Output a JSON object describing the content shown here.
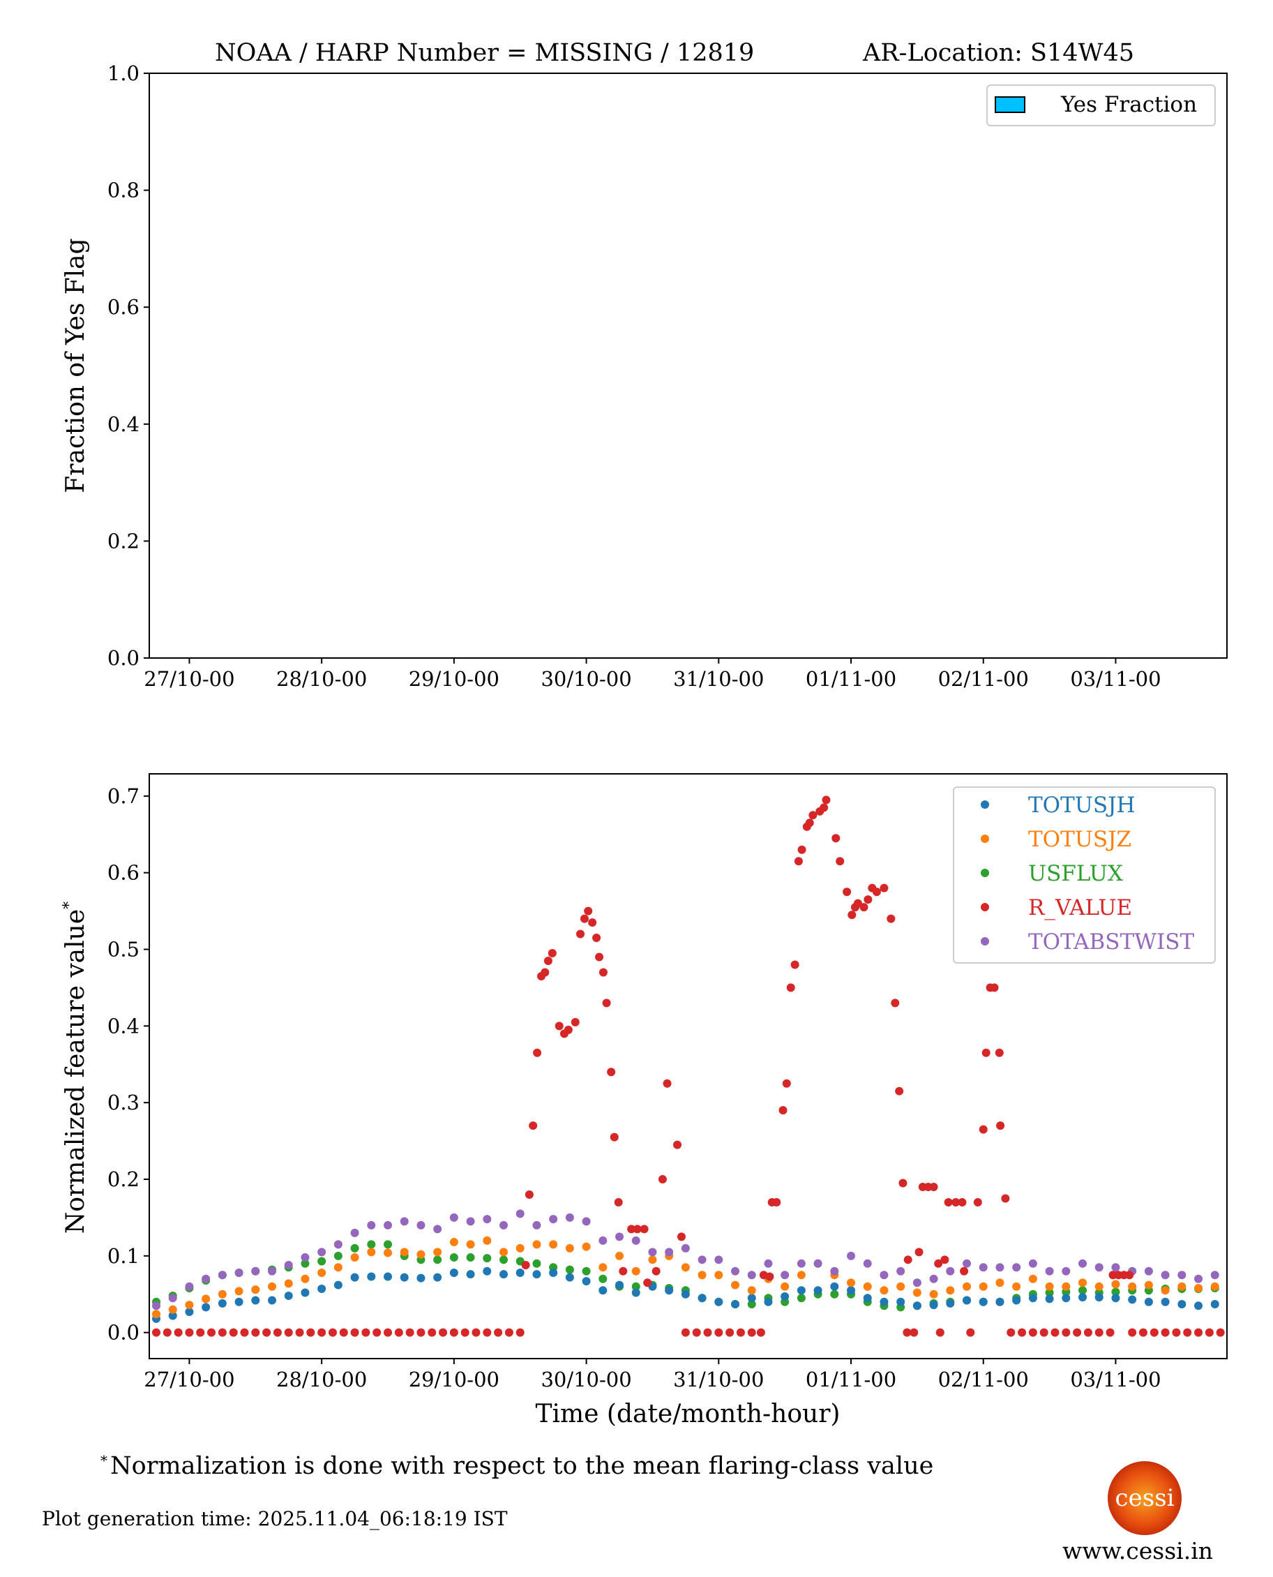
{
  "title": {
    "left": "NOAA / HARP Number = MISSING / 12819",
    "right": "AR-Location: S14W45"
  },
  "colors": {
    "TOTUSJH": "#1f77b4",
    "TOTUSJZ": "#ff7f0e",
    "USFLUX": "#2ca02c",
    "R_VALUE": "#d62728",
    "TOTABSTWIST": "#9467bd",
    "yes_fraction": "#00bfff",
    "logo": "#e8500f"
  },
  "footnote": {
    "mark": "*",
    "text": "Normalization is done with respect to the mean flaring-class value"
  },
  "generation_time": "Plot generation time: 2025.11.04_06:18:19 IST",
  "logo": {
    "text": "cessi",
    "url": "www.cessi.in"
  },
  "chart_data": [
    {
      "type": "bar",
      "ylabel": "Fraction of Yes Flag",
      "ylim": [
        0,
        1
      ],
      "yticks": [
        "0.0",
        "0.2",
        "0.4",
        "0.6",
        "0.8",
        "1.0"
      ],
      "xticks": [
        "27/10-00",
        "28/10-00",
        "29/10-00",
        "30/10-00",
        "31/10-00",
        "01/11-00",
        "02/11-00",
        "03/11-00"
      ],
      "xlim": [
        "26/10 16:44",
        "03/11 20:11"
      ],
      "legend": {
        "placement": "top-right",
        "entries": [
          "Yes Fraction"
        ]
      },
      "values": [],
      "grid": false
    },
    {
      "type": "scatter",
      "ylabel": "Normalized feature value",
      "ylabel_mark": "*",
      "xlabel": "Time (date/month-hour)",
      "ylim": [
        -0.034,
        0.729
      ],
      "yticks": [
        "0.0",
        "0.1",
        "0.2",
        "0.3",
        "0.4",
        "0.5",
        "0.6",
        "0.7"
      ],
      "xticks": [
        "27/10-00",
        "28/10-00",
        "29/10-00",
        "30/10-00",
        "31/10-00",
        "01/11-00",
        "02/11-00",
        "03/11-00"
      ],
      "xlim": [
        "26/10 16:44",
        "03/11 20:11"
      ],
      "grid": false,
      "legend": {
        "placement": "top-right",
        "entries": [
          "TOTUSJH",
          "TOTUSJZ",
          "USFLUX",
          "R_VALUE",
          "TOTABSTWIST"
        ]
      },
      "x": [
        "26/10 18:00",
        "26/10 21:00",
        "27/10 00:00",
        "27/10 03:00",
        "27/10 06:00",
        "27/10 09:00",
        "27/10 12:00",
        "27/10 15:00",
        "27/10 18:00",
        "27/10 21:00",
        "28/10 00:00",
        "28/10 03:00",
        "28/10 06:00",
        "28/10 09:00",
        "28/10 12:00",
        "28/10 15:00",
        "28/10 18:00",
        "28/10 21:00",
        "29/10 00:00",
        "29/10 03:00",
        "29/10 06:00",
        "29/10 09:00",
        "29/10 12:00",
        "29/10 15:00",
        "29/10 18:00",
        "29/10 21:00",
        "30/10 00:00",
        "30/10 03:00",
        "30/10 06:00",
        "30/10 09:00",
        "30/10 12:00",
        "30/10 15:00",
        "30/10 18:00",
        "30/10 21:00",
        "31/10 00:00",
        "31/10 03:00",
        "31/10 06:00",
        "31/10 09:00",
        "31/10 12:00",
        "31/10 15:00",
        "31/10 18:00",
        "31/10 21:00",
        "01/11 00:00",
        "01/11 03:00",
        "01/11 06:00",
        "01/11 09:00",
        "01/11 12:00",
        "01/11 15:00",
        "01/11 18:00",
        "01/11 21:00",
        "02/11 00:00",
        "02/11 03:00",
        "02/11 06:00",
        "02/11 09:00",
        "02/11 12:00",
        "02/11 15:00",
        "02/11 18:00",
        "02/11 21:00",
        "03/11 00:00",
        "03/11 03:00",
        "03/11 06:00",
        "03/11 09:00",
        "03/11 12:00",
        "03/11 15:00",
        "03/11 18:00"
      ],
      "series": [
        {
          "name": "TOTUSJH",
          "values": [
            0.018,
            0.022,
            0.027,
            0.033,
            0.038,
            0.04,
            0.042,
            0.042,
            0.048,
            0.052,
            0.057,
            0.062,
            0.072,
            0.073,
            0.073,
            0.072,
            0.071,
            0.072,
            0.078,
            0.076,
            0.08,
            0.076,
            0.078,
            0.076,
            0.078,
            0.072,
            0.067,
            0.055,
            0.062,
            0.052,
            0.06,
            0.055,
            0.05,
            0.045,
            0.04,
            0.037,
            0.045,
            0.04,
            0.047,
            0.055,
            0.055,
            0.06,
            0.055,
            0.045,
            0.04,
            0.04,
            0.035,
            0.036,
            0.038,
            0.042,
            0.04,
            0.04,
            0.042,
            0.045,
            0.044,
            0.045,
            0.046,
            0.046,
            0.045,
            0.043,
            0.04,
            0.04,
            0.037,
            0.035,
            0.037
          ]
        },
        {
          "name": "TOTUSJZ",
          "values": [
            0.024,
            0.03,
            0.036,
            0.044,
            0.05,
            0.054,
            0.056,
            0.06,
            0.064,
            0.07,
            0.078,
            0.085,
            0.098,
            0.105,
            0.104,
            0.105,
            0.102,
            0.105,
            0.118,
            0.115,
            0.12,
            0.105,
            0.11,
            0.115,
            0.115,
            0.11,
            0.112,
            0.085,
            0.1,
            0.08,
            0.095,
            0.1,
            0.085,
            0.075,
            0.075,
            0.062,
            0.055,
            0.07,
            0.06,
            0.075,
            0.09,
            0.075,
            0.065,
            0.06,
            0.055,
            0.06,
            0.052,
            0.05,
            0.055,
            0.06,
            0.06,
            0.065,
            0.06,
            0.07,
            0.06,
            0.06,
            0.065,
            0.06,
            0.063,
            0.06,
            0.062,
            0.055,
            0.06,
            0.058,
            0.06
          ]
        },
        {
          "name": "USFLUX",
          "values": [
            0.04,
            0.048,
            0.058,
            0.068,
            0.075,
            0.078,
            0.08,
            0.082,
            0.085,
            0.09,
            0.093,
            0.1,
            0.11,
            0.115,
            0.115,
            0.1,
            0.095,
            0.095,
            0.098,
            0.098,
            0.097,
            0.095,
            0.093,
            0.09,
            0.085,
            0.082,
            0.08,
            0.07,
            0.06,
            0.06,
            0.062,
            0.058,
            0.055,
            0.045,
            0.04,
            0.037,
            0.037,
            0.045,
            0.04,
            0.045,
            0.05,
            0.05,
            0.05,
            0.04,
            0.035,
            0.033,
            0.035,
            0.038,
            0.04,
            0.042,
            0.04,
            0.04,
            0.045,
            0.05,
            0.052,
            0.053,
            0.055,
            0.052,
            0.053,
            0.055,
            0.055,
            0.057,
            0.057,
            0.057,
            0.058
          ]
        },
        {
          "name": "TOTABSTWIST",
          "values": [
            0.035,
            0.045,
            0.06,
            0.07,
            0.075,
            0.078,
            0.08,
            0.08,
            0.088,
            0.098,
            0.105,
            0.115,
            0.13,
            0.14,
            0.14,
            0.145,
            0.14,
            0.135,
            0.15,
            0.145,
            0.148,
            0.14,
            0.155,
            0.14,
            0.148,
            0.15,
            0.145,
            0.12,
            0.125,
            0.12,
            0.105,
            0.105,
            0.11,
            0.095,
            0.095,
            0.08,
            0.075,
            0.09,
            0.075,
            0.09,
            0.09,
            0.08,
            0.1,
            0.09,
            0.075,
            0.08,
            0.065,
            0.07,
            0.08,
            0.09,
            0.085,
            0.085,
            0.085,
            0.09,
            0.08,
            0.08,
            0.09,
            0.085,
            0.085,
            0.08,
            0.08,
            0.075,
            0.075,
            0.07,
            0.075
          ]
        }
      ],
      "r_value_points": [
        [
          "26/10 18:00",
          0
        ],
        [
          "26/10 20:00",
          0
        ],
        [
          "26/10 22:00",
          0
        ],
        [
          "27/10 00:00",
          0
        ],
        [
          "27/10 02:00",
          0
        ],
        [
          "27/10 04:00",
          0
        ],
        [
          "27/10 06:00",
          0
        ],
        [
          "27/10 08:00",
          0
        ],
        [
          "27/10 10:00",
          0
        ],
        [
          "27/10 12:00",
          0
        ],
        [
          "27/10 14:00",
          0
        ],
        [
          "27/10 16:00",
          0
        ],
        [
          "27/10 18:00",
          0
        ],
        [
          "27/10 20:00",
          0
        ],
        [
          "27/10 22:00",
          0
        ],
        [
          "28/10 00:00",
          0
        ],
        [
          "28/10 02:00",
          0
        ],
        [
          "28/10 04:00",
          0
        ],
        [
          "28/10 06:00",
          0
        ],
        [
          "28/10 08:00",
          0
        ],
        [
          "28/10 10:00",
          0
        ],
        [
          "28/10 12:00",
          0
        ],
        [
          "28/10 14:00",
          0
        ],
        [
          "28/10 16:00",
          0
        ],
        [
          "28/10 18:00",
          0
        ],
        [
          "28/10 20:00",
          0
        ],
        [
          "28/10 22:00",
          0
        ],
        [
          "29/10 00:00",
          0
        ],
        [
          "29/10 02:00",
          0
        ],
        [
          "29/10 04:00",
          0
        ],
        [
          "29/10 06:00",
          0
        ],
        [
          "29/10 08:00",
          0
        ],
        [
          "29/10 10:00",
          0
        ],
        [
          "29/10 12:00",
          0
        ],
        [
          "29/10 13:00",
          0.088
        ],
        [
          "29/10 13:40",
          0.18
        ],
        [
          "29/10 14:20",
          0.27
        ],
        [
          "29/10 15:05",
          0.365
        ],
        [
          "29/10 15:50",
          0.465
        ],
        [
          "29/10 16:30",
          0.47
        ],
        [
          "29/10 17:05",
          0.485
        ],
        [
          "29/10 17:50",
          0.495
        ],
        [
          "29/10 19:05",
          0.4
        ],
        [
          "29/10 20:00",
          0.39
        ],
        [
          "29/10 20:45",
          0.395
        ],
        [
          "29/10 22:00",
          0.405
        ],
        [
          "29/10 22:55",
          0.52
        ],
        [
          "29/10 23:40",
          0.54
        ],
        [
          "30/10 00:20",
          0.55
        ],
        [
          "30/10 01:05",
          0.535
        ],
        [
          "30/10 01:50",
          0.515
        ],
        [
          "30/10 02:20",
          0.49
        ],
        [
          "30/10 03:05",
          0.47
        ],
        [
          "30/10 03:40",
          0.43
        ],
        [
          "30/10 04:30",
          0.34
        ],
        [
          "30/10 05:05",
          0.255
        ],
        [
          "30/10 05:50",
          0.17
        ],
        [
          "30/10 06:40",
          0.08
        ],
        [
          "30/10 08:10",
          0.135
        ],
        [
          "30/10 09:15",
          0.135
        ],
        [
          "30/10 10:30",
          0.135
        ],
        [
          "30/10 11:05",
          0.065
        ],
        [
          "30/10 12:40",
          0.08
        ],
        [
          "30/10 13:50",
          0.2
        ],
        [
          "30/10 14:40",
          0.325
        ],
        [
          "30/10 16:30",
          0.245
        ],
        [
          "30/10 17:15",
          0.125
        ],
        [
          "30/10 18:00",
          0
        ],
        [
          "30/10 20:00",
          0
        ],
        [
          "30/10 22:00",
          0
        ],
        [
          "31/10 00:00",
          0
        ],
        [
          "31/10 02:00",
          0
        ],
        [
          "31/10 04:00",
          0
        ],
        [
          "31/10 06:00",
          0
        ],
        [
          "31/10 07:40",
          0
        ],
        [
          "31/10 08:10",
          0.075
        ],
        [
          "31/10 09:15",
          0.073
        ],
        [
          "31/10 09:40",
          0.17
        ],
        [
          "31/10 10:30",
          0.17
        ],
        [
          "31/10 11:40",
          0.29
        ],
        [
          "31/10 12:20",
          0.325
        ],
        [
          "31/10 13:05",
          0.45
        ],
        [
          "31/10 13:50",
          0.48
        ],
        [
          "31/10 14:30",
          0.615
        ],
        [
          "31/10 15:05",
          0.63
        ],
        [
          "31/10 16:00",
          0.66
        ],
        [
          "31/10 16:30",
          0.665
        ],
        [
          "31/10 17:05",
          0.675
        ],
        [
          "31/10 18:20",
          0.68
        ],
        [
          "31/10 19:05",
          0.685
        ],
        [
          "31/10 19:30",
          0.695
        ],
        [
          "31/10 21:15",
          0.645
        ],
        [
          "31/10 22:00",
          0.615
        ],
        [
          "31/10 23:15",
          0.575
        ],
        [
          "01/11 00:10",
          0.545
        ],
        [
          "01/11 00:45",
          0.555
        ],
        [
          "01/11 01:15",
          0.56
        ],
        [
          "01/11 02:20",
          0.555
        ],
        [
          "01/11 03:05",
          0.565
        ],
        [
          "01/11 03:50",
          0.58
        ],
        [
          "01/11 04:40",
          0.575
        ],
        [
          "01/11 06:00",
          0.58
        ],
        [
          "01/11 07:15",
          0.54
        ],
        [
          "01/11 08:00",
          0.43
        ],
        [
          "01/11 08:45",
          0.315
        ],
        [
          "01/11 09:25",
          0.195
        ],
        [
          "01/11 10:10",
          0
        ],
        [
          "01/11 10:20",
          0.095
        ],
        [
          "01/11 11:25",
          0
        ],
        [
          "01/11 12:20",
          0.105
        ],
        [
          "01/11 13:00",
          0.19
        ],
        [
          "01/11 14:00",
          0.19
        ],
        [
          "01/11 15:00",
          0.19
        ],
        [
          "01/11 15:50",
          0.09
        ],
        [
          "01/11 16:10",
          0
        ],
        [
          "01/11 17:00",
          0.095
        ],
        [
          "01/11 17:40",
          0.17
        ],
        [
          "01/11 19:00",
          0.17
        ],
        [
          "01/11 20:10",
          0.17
        ],
        [
          "01/11 20:30",
          0.08
        ],
        [
          "01/11 21:40",
          0
        ],
        [
          "01/11 23:00",
          0.17
        ],
        [
          "02/11 00:00",
          0.265
        ],
        [
          "02/11 00:30",
          0.365
        ],
        [
          "02/11 01:15",
          0.45
        ],
        [
          "02/11 02:00",
          0.45
        ],
        [
          "02/11 02:55",
          0.365
        ],
        [
          "02/11 03:05",
          0.27
        ],
        [
          "02/11 04:00",
          0.175
        ],
        [
          "02/11 05:00",
          0
        ],
        [
          "02/11 07:00",
          0
        ],
        [
          "02/11 09:00",
          0
        ],
        [
          "02/11 11:00",
          0
        ],
        [
          "02/11 13:00",
          0
        ],
        [
          "02/11 15:00",
          0
        ],
        [
          "02/11 17:00",
          0
        ],
        [
          "02/11 19:00",
          0
        ],
        [
          "02/11 21:00",
          0
        ],
        [
          "02/11 23:00",
          0
        ],
        [
          "02/11 23:30",
          0.075
        ],
        [
          "03/11 00:30",
          0.075
        ],
        [
          "03/11 01:30",
          0.075
        ],
        [
          "03/11 02:30",
          0.075
        ],
        [
          "03/11 03:00",
          0
        ],
        [
          "03/11 05:00",
          0
        ],
        [
          "03/11 07:00",
          0
        ],
        [
          "03/11 09:00",
          0
        ],
        [
          "03/11 11:00",
          0
        ],
        [
          "03/11 13:00",
          0
        ],
        [
          "03/11 15:00",
          0
        ],
        [
          "03/11 17:00",
          0
        ],
        [
          "03/11 19:00",
          0
        ]
      ]
    }
  ]
}
